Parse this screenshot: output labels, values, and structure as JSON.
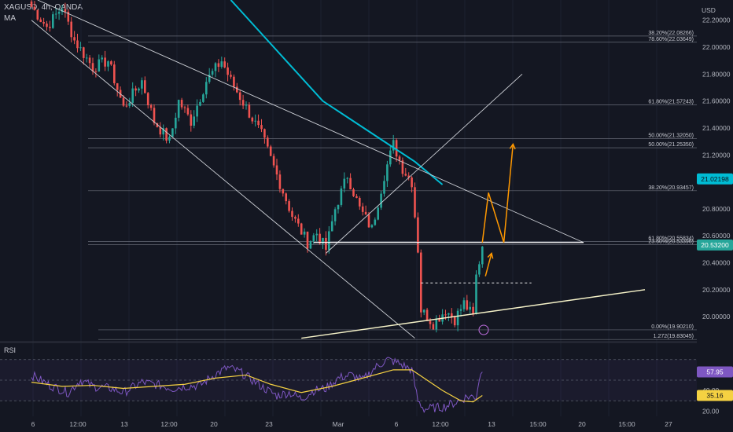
{
  "header": {
    "symbol_line": "XAGUSD, 4h, OANDA",
    "indicator": "MA",
    "currency": "USD",
    "rsi_label": "RSI"
  },
  "colors": {
    "background": "#141722",
    "up_candle": "#26a69a",
    "down_candle": "#ef5350",
    "ma_line": "#00bcd4",
    "projection_arrow": "#ff9800",
    "rsi_line": "#7e57c2",
    "rsi_ma": "#f5d142",
    "channel_line": "#cfd2d8",
    "support_line": "#f5f2c8"
  },
  "chart_data": {
    "type": "candlestick",
    "price_axis": {
      "range": [
        19.82,
        22.35
      ],
      "ticks": [
        "22.20000",
        "22.00000",
        "21.80000",
        "21.60000",
        "21.40000",
        "21.20000",
        "21.00000",
        "20.80000",
        "20.60000",
        "20.40000",
        "20.20000",
        "20.00000"
      ]
    },
    "rsi_axis": {
      "range": [
        15,
        85
      ],
      "ticks": [
        "60.00",
        "40.00",
        "20.00"
      ]
    },
    "time_axis": [
      "6",
      "12:00",
      "13",
      "12:00",
      "20",
      "23",
      "Mar",
      "6",
      "12:00",
      "13",
      "15:00",
      "20",
      "15:00",
      "27"
    ],
    "fib_levels": [
      {
        "label": "38.20%(22.08266)",
        "price": 22.0827
      },
      {
        "label": "78.60%(22.03649)",
        "price": 22.0365
      },
      {
        "label": "61.80%(21.57243)",
        "price": 21.5724
      },
      {
        "label": "50.00%(21.32050)",
        "price": 21.3205
      },
      {
        "label": "50.00%(21.25350)",
        "price": 21.2535
      },
      {
        "label": "38.20%(20.93457)",
        "price": 20.9346
      },
      {
        "label": "61.80%(20.55834)",
        "price": 20.5583
      },
      {
        "label": "23.60%(20.53396)",
        "price": 20.534
      },
      {
        "label": "0.00%(19.90210)",
        "price": 19.9021
      },
      {
        "label": "1.272(19.83045)",
        "price": 19.8305
      }
    ],
    "price_badges": [
      {
        "text": "21.02198",
        "price": 21.022,
        "color": "#00bcd4",
        "text_color": "#0d0f16"
      },
      {
        "text": "20.53200",
        "price": 20.532,
        "color": "#26a69a",
        "text_color": "#ffffff"
      }
    ],
    "rsi_badges": [
      {
        "text": "57.95",
        "value": 57.95,
        "color": "#7e57c2",
        "text_color": "#ffffff"
      },
      {
        "text": "35.16",
        "value": 35.16,
        "color": "#f5d142",
        "text_color": "#0d0f16"
      }
    ],
    "candle_path": [
      [
        0,
        22.3
      ],
      [
        5,
        22.15
      ],
      [
        10,
        22.3
      ],
      [
        14,
        22.05
      ],
      [
        20,
        21.85
      ],
      [
        25,
        21.9
      ],
      [
        30,
        21.55
      ],
      [
        36,
        21.75
      ],
      [
        40,
        21.45
      ],
      [
        45,
        21.3
      ],
      [
        48,
        21.6
      ],
      [
        52,
        21.45
      ],
      [
        57,
        21.75
      ],
      [
        62,
        21.9
      ],
      [
        65,
        21.75
      ],
      [
        70,
        21.55
      ],
      [
        75,
        21.35
      ],
      [
        80,
        21.05
      ],
      [
        85,
        20.75
      ],
      [
        90,
        20.55
      ],
      [
        93,
        20.62
      ],
      [
        96,
        20.5
      ],
      [
        99,
        20.8
      ],
      [
        103,
        21.05
      ],
      [
        107,
        20.8
      ],
      [
        111,
        20.65
      ],
      [
        115,
        21.05
      ],
      [
        118,
        21.28
      ],
      [
        121,
        21.1
      ],
      [
        124,
        21.0
      ],
      [
        126,
        20.5
      ],
      [
        127,
        20.05
      ],
      [
        131,
        19.95
      ],
      [
        135,
        20.05
      ],
      [
        138,
        19.98
      ],
      [
        141,
        20.1
      ],
      [
        144,
        20.0
      ],
      [
        145,
        20.3
      ],
      [
        147,
        20.52
      ]
    ],
    "ma_path": [
      [
        65,
        22.35
      ],
      [
        75,
        22.1
      ],
      [
        85,
        21.85
      ],
      [
        95,
        21.6
      ],
      [
        105,
        21.45
      ],
      [
        115,
        21.3
      ],
      [
        125,
        21.15
      ],
      [
        134,
        20.98
      ]
    ],
    "rsi_path": [
      [
        0,
        55
      ],
      [
        6,
        45
      ],
      [
        12,
        38
      ],
      [
        16,
        50
      ],
      [
        20,
        44
      ],
      [
        26,
        42
      ],
      [
        30,
        38
      ],
      [
        36,
        48
      ],
      [
        42,
        45
      ],
      [
        46,
        42
      ],
      [
        50,
        44
      ],
      [
        55,
        45
      ],
      [
        60,
        56
      ],
      [
        64,
        62
      ],
      [
        68,
        58
      ],
      [
        72,
        50
      ],
      [
        76,
        42
      ],
      [
        80,
        35
      ],
      [
        84,
        38
      ],
      [
        88,
        32
      ],
      [
        92,
        40
      ],
      [
        96,
        42
      ],
      [
        100,
        52
      ],
      [
        104,
        55
      ],
      [
        108,
        50
      ],
      [
        112,
        62
      ],
      [
        116,
        70
      ],
      [
        120,
        66
      ],
      [
        124,
        60
      ],
      [
        126,
        30
      ],
      [
        128,
        22
      ],
      [
        134,
        24
      ],
      [
        138,
        28
      ],
      [
        142,
        34
      ],
      [
        145,
        34
      ],
      [
        146,
        52
      ],
      [
        147,
        57.95
      ]
    ],
    "rsi_ma_path": [
      [
        0,
        48
      ],
      [
        10,
        44
      ],
      [
        20,
        45
      ],
      [
        30,
        42
      ],
      [
        40,
        44
      ],
      [
        50,
        46
      ],
      [
        60,
        52
      ],
      [
        70,
        55
      ],
      [
        78,
        46
      ],
      [
        88,
        38
      ],
      [
        98,
        44
      ],
      [
        108,
        52
      ],
      [
        118,
        60
      ],
      [
        124,
        60
      ],
      [
        128,
        52
      ],
      [
        134,
        40
      ],
      [
        140,
        30
      ],
      [
        144,
        29
      ],
      [
        147,
        35.16
      ]
    ],
    "drawings": {
      "upper_channel": [
        [
          2,
          22.35
        ],
        [
          180,
          20.55
        ]
      ],
      "lower_channel": [
        [
          0,
          22.2
        ],
        [
          125,
          19.84
        ]
      ],
      "rising_line": [
        [
          96,
          20.47
        ],
        [
          160,
          21.8
        ]
      ],
      "support_line": [
        [
          88,
          19.84
        ],
        [
          200,
          20.2
        ]
      ],
      "resistance_level": {
        "price": 20.55,
        "from": 92,
        "to": 180
      },
      "dashed_level": {
        "price": 20.25,
        "from": 127,
        "to": 163
      }
    },
    "projection": [
      [
        147,
        20.55
      ],
      [
        149,
        20.92
      ],
      [
        154,
        20.55
      ],
      [
        157,
        21.28
      ]
    ],
    "projection_minor": [
      [
        148,
        20.3
      ],
      [
        150,
        20.47
      ]
    ]
  }
}
